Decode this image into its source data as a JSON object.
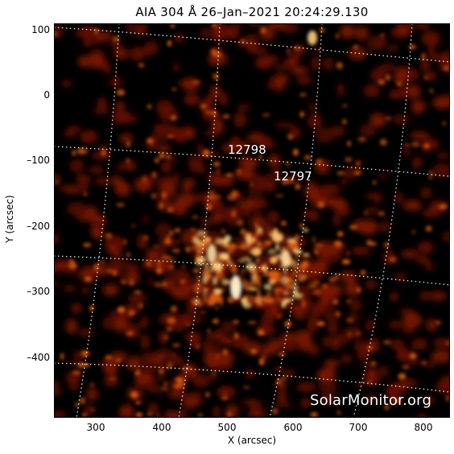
{
  "header": {
    "title": "AIA 304 Å 26–Jan–2021 20:24:29.130"
  },
  "axes": {
    "x_label": "X (arcsec)",
    "y_label": "Y (arcsec)",
    "x_ticks": [
      "300",
      "400",
      "500",
      "600",
      "700",
      "800"
    ],
    "y_ticks": [
      "100",
      "0",
      "–100",
      "–200",
      "–300",
      "–400"
    ]
  },
  "regions": [
    {
      "label": "12798"
    },
    {
      "label": "12797"
    }
  ],
  "watermark": "SolarMonitor.org",
  "colors": {
    "background": "#000000",
    "emission_dim": "#7a1400",
    "emission_mid": "#d95a10",
    "emission_bright": "#ffd27a",
    "grid": "#ffffff"
  }
}
